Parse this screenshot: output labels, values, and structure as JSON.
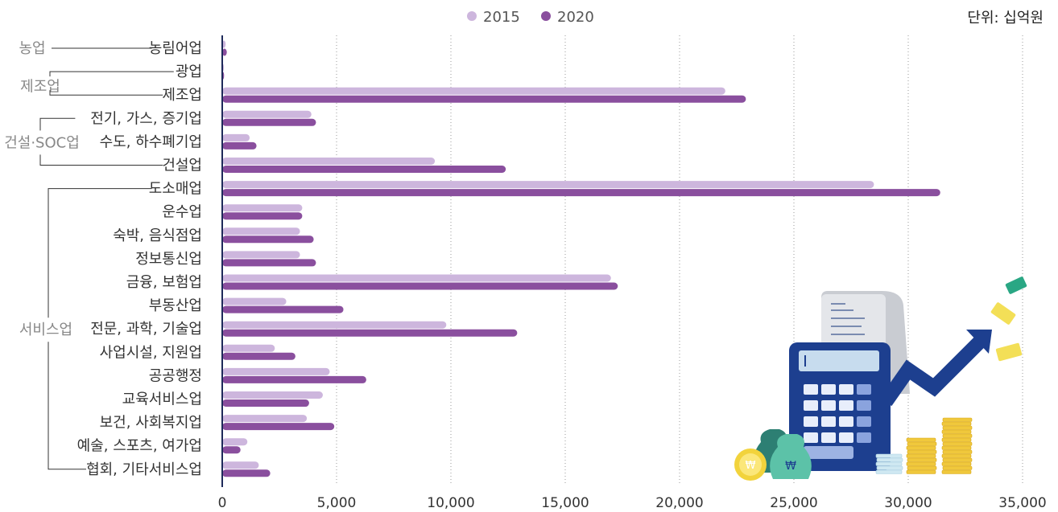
{
  "unit_label": "단위: 십억원",
  "legend": [
    {
      "label": "2015",
      "color": "#cdb6dd"
    },
    {
      "label": "2020",
      "color": "#8a4f9e"
    }
  ],
  "groups": [
    {
      "label": "농업",
      "start": 0,
      "end": 0
    },
    {
      "label": "제조업",
      "start": 1,
      "end": 2
    },
    {
      "label": "건설·SOC업",
      "start": 3,
      "end": 5
    },
    {
      "label": "서비스업",
      "start": 6,
      "end": 18
    }
  ],
  "chart_data": {
    "type": "bar",
    "orientation": "horizontal",
    "categories": [
      "농림어업",
      "광업",
      "제조업",
      "전기, 가스, 증기업",
      "수도, 하수폐기업",
      "건설업",
      "도소매업",
      "운수업",
      "숙박, 음식점업",
      "정보통신업",
      "금융, 보험업",
      "부동산업",
      "전문, 과학, 기술업",
      "사업시설, 지원업",
      "공공행정",
      "교육서비스업",
      "보건, 사회복지업",
      "예술, 스포츠, 여가업",
      "협회, 기타서비스업"
    ],
    "series": [
      {
        "name": "2015",
        "color": "#cdb6dd",
        "values": [
          150,
          50,
          22000,
          3900,
          1200,
          9300,
          28500,
          3500,
          3400,
          3400,
          17000,
          2800,
          9800,
          2300,
          4700,
          4400,
          3700,
          1100,
          1600
        ]
      },
      {
        "name": "2020",
        "color": "#8a4f9e",
        "values": [
          200,
          80,
          22900,
          4100,
          1500,
          12400,
          31400,
          3500,
          4000,
          4100,
          17300,
          5300,
          12900,
          3200,
          6300,
          3800,
          4900,
          800,
          2100
        ]
      }
    ],
    "x_ticks": [
      0,
      5000,
      10000,
      15000,
      20000,
      25000,
      30000,
      35000
    ],
    "x_tick_labels": [
      "0",
      "5,000",
      "10,000",
      "15,000",
      "20,000",
      "25,000",
      "30,000",
      "35,000"
    ],
    "xlim": [
      0,
      35000
    ],
    "grid": "vertical dotted",
    "legend_position": "top-center"
  }
}
